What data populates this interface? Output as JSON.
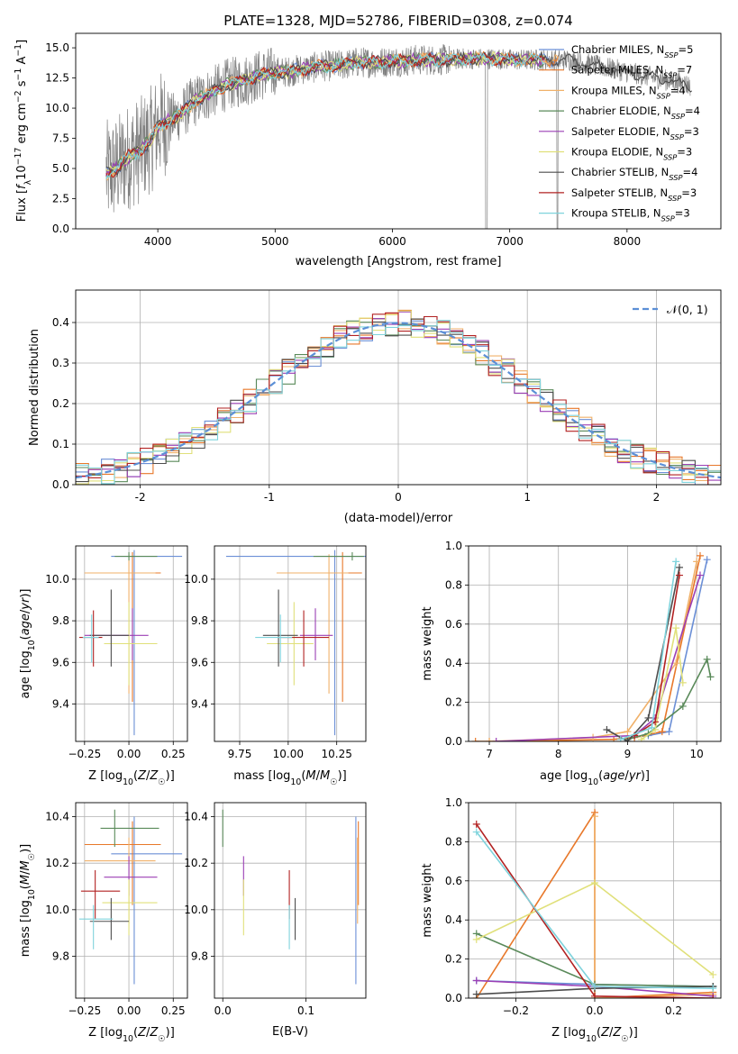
{
  "figure": {
    "title": "PLATE=1328, MJD=52786, FIBERID=0308, z=0.074"
  },
  "series_colors": [
    "#6b8fd6",
    "#e8782a",
    "#f0b16a",
    "#5a8a5a",
    "#9b3fb5",
    "#e0e07a",
    "#4d4d4d",
    "#b22222",
    "#7fd3dc"
  ],
  "chart_data": [
    {
      "id": "spectrum",
      "type": "line",
      "xlabel": "wavelength [Angstrom, rest frame]",
      "ylabel": "Flux [f_λ 10^-17 erg cm^-2 s^-1 A^-1]",
      "xlim": [
        3300,
        8800
      ],
      "ylim": [
        0,
        16.2
      ],
      "xticks": [
        4000,
        5000,
        6000,
        7000,
        8000
      ],
      "yticks": [
        0.0,
        2.5,
        5.0,
        7.5,
        10.0,
        12.5,
        15.0
      ],
      "legend_position": "right",
      "legend": [
        {
          "lib": "Chabrier MILES",
          "n": "5"
        },
        {
          "lib": "Salpeter MILES",
          "n": "7"
        },
        {
          "lib": "Kroupa MILES",
          "n": "4"
        },
        {
          "lib": "Chabrier ELODIE",
          "n": "4"
        },
        {
          "lib": "Salpeter ELODIE",
          "n": "3"
        },
        {
          "lib": "Kroupa ELODIE",
          "n": "3"
        },
        {
          "lib": "Chabrier STELIB",
          "n": "4"
        },
        {
          "lib": "Salpeter STELIB",
          "n": "3"
        },
        {
          "lib": "Kroupa STELIB",
          "n": "3"
        }
      ],
      "legend_subscript": "SSP",
      "continuum_x": [
        3550,
        3650,
        3750,
        3850,
        3950,
        4000,
        4100,
        4200,
        4300,
        4400,
        4500,
        4600,
        4700,
        4800,
        4900,
        5000,
        5100,
        5200,
        5300,
        5400,
        5500,
        5600,
        5700,
        5800,
        5900,
        6000,
        6100,
        6200,
        6300,
        6400,
        6500,
        6600,
        6700,
        6800,
        6900,
        7000,
        7100,
        7200,
        7300,
        7400,
        7500,
        7600,
        7700,
        7800,
        7900,
        8000,
        8100,
        8200,
        8300,
        8400,
        8500,
        8550
      ],
      "continuum_y": [
        4.5,
        5.0,
        6.0,
        6.5,
        7.5,
        8.5,
        9.0,
        9.5,
        10.5,
        11.0,
        11.5,
        12.0,
        12.2,
        12.5,
        12.8,
        13.0,
        13.0,
        13.2,
        13.3,
        13.5,
        13.5,
        13.6,
        13.8,
        13.8,
        13.8,
        13.9,
        13.9,
        14.0,
        14.0,
        14.0,
        14.0,
        14.1,
        14.1,
        14.1,
        14.1,
        14.0,
        14.0,
        14.0,
        14.0,
        14.0,
        14.0,
        13.8,
        13.6,
        13.4,
        13.2,
        13.0,
        12.8,
        12.6,
        12.4,
        12.2,
        12.0,
        11.8
      ]
    },
    {
      "id": "residuals",
      "type": "step",
      "xlabel": "(data-model)/error",
      "ylabel": "Normed distribution",
      "xlim": [
        -2.5,
        2.5
      ],
      "ylim": [
        0,
        0.48
      ],
      "xticks": [
        -2,
        -1,
        0,
        1,
        2
      ],
      "yticks": [
        0.0,
        0.1,
        0.2,
        0.3,
        0.4
      ],
      "grid": true,
      "legend_label": "𝒩(0, 1)",
      "legend_position": "top-right",
      "bin_start": -2.5,
      "bin_width": 0.1,
      "gaussian": {
        "mu": 0,
        "sigma": 1
      }
    },
    {
      "id": "age_vs_Z",
      "type": "errorbar",
      "xlabel": "Z [log10(Z/Z☉)]",
      "ylabel": "age  [log10(age/yr)]",
      "xlim": [
        -0.3,
        0.33
      ],
      "ylim": [
        9.22,
        10.16
      ],
      "xticks": [
        -0.25,
        0.0,
        0.25
      ],
      "xtick_labels": [
        "−0.25",
        "0.00",
        "0.25"
      ],
      "yticks": [
        9.4,
        9.6,
        9.8,
        10.0
      ],
      "grid": true,
      "points": [
        {
          "x": 0.03,
          "y": 10.11,
          "xerr": [
            0.13,
            0.27
          ],
          "yerr": [
            0.86,
            0.03
          ]
        },
        {
          "x": 0.02,
          "y": 10.03,
          "xerr": [
            0.27,
            0.16
          ],
          "yerr": [
            0.62,
            0.1
          ]
        },
        {
          "x": 0.0,
          "y": 10.03,
          "xerr": [
            0.25,
            0.15
          ],
          "yerr": [
            0.58,
            0.09
          ]
        },
        {
          "x": 0.0,
          "y": 10.11,
          "xerr": [
            0.08,
            0.16
          ],
          "yerr": [
            0.02,
            0.02
          ]
        },
        {
          "x": 0.02,
          "y": 9.73,
          "xerr": [
            0.27,
            0.09
          ],
          "yerr": [
            0.12,
            0.13
          ]
        },
        {
          "x": 0.0,
          "y": 9.69,
          "xerr": [
            0.14,
            0.16
          ],
          "yerr": [
            0.2,
            0.2
          ]
        },
        {
          "x": -0.1,
          "y": 9.73,
          "xerr": [
            0.12,
            0.1
          ],
          "yerr": [
            0.15,
            0.22
          ]
        },
        {
          "x": -0.2,
          "y": 9.72,
          "xerr": [
            0.08,
            0.05
          ],
          "yerr": [
            0.14,
            0.13
          ]
        },
        {
          "x": -0.21,
          "y": 9.72,
          "xerr": [
            0.05,
            0.04
          ],
          "yerr": [
            0.12,
            0.11
          ]
        }
      ]
    },
    {
      "id": "age_vs_mass",
      "type": "errorbar",
      "xlabel": "mass [log10(M/M☉)]",
      "ylabel": "",
      "xlim": [
        9.62,
        10.4
      ],
      "ylim": [
        9.22,
        10.16
      ],
      "xticks": [
        9.75,
        10.0,
        10.25
      ],
      "xtick_labels": [
        "9.75",
        "10.00",
        "10.25"
      ],
      "yticks": [
        9.4,
        9.6,
        9.8,
        10.0
      ],
      "grid": true,
      "points": [
        {
          "x": 10.24,
          "y": 10.11,
          "xerr": [
            0.56,
            0.16
          ],
          "yerr": [
            0.86,
            0.03
          ]
        },
        {
          "x": 10.28,
          "y": 10.03,
          "xerr": [
            0.26,
            0.1
          ],
          "yerr": [
            0.62,
            0.1
          ]
        },
        {
          "x": 10.21,
          "y": 10.03,
          "xerr": [
            0.27,
            0.1
          ],
          "yerr": [
            0.58,
            0.09
          ]
        },
        {
          "x": 10.33,
          "y": 10.11,
          "xerr": [
            0.2,
            0.06
          ],
          "yerr": [
            0.02,
            0.02
          ]
        },
        {
          "x": 10.14,
          "y": 9.73,
          "xerr": [
            0.08,
            0.09
          ],
          "yerr": [
            0.12,
            0.13
          ]
        },
        {
          "x": 10.03,
          "y": 9.69,
          "xerr": [
            0.14,
            0.1
          ],
          "yerr": [
            0.2,
            0.2
          ]
        },
        {
          "x": 9.95,
          "y": 9.73,
          "xerr": [
            0.08,
            0.1
          ],
          "yerr": [
            0.15,
            0.22
          ]
        },
        {
          "x": 10.08,
          "y": 9.72,
          "xerr": [
            0.12,
            0.13
          ],
          "yerr": [
            0.14,
            0.13
          ]
        },
        {
          "x": 9.96,
          "y": 9.72,
          "xerr": [
            0.13,
            0.06
          ],
          "yerr": [
            0.12,
            0.11
          ]
        }
      ]
    },
    {
      "id": "mass_weight_vs_age",
      "type": "line",
      "xlabel": "age  [log10(age/yr)]",
      "ylabel": "mass weight",
      "xlim": [
        6.7,
        10.35
      ],
      "ylim": [
        0,
        1.0
      ],
      "xticks": [
        7,
        8,
        9,
        10
      ],
      "yticks": [
        0.0,
        0.2,
        0.4,
        0.6,
        0.8,
        1.0
      ],
      "grid": true,
      "series": [
        {
          "x": [
            8.8,
            9.3,
            9.6,
            10.15
          ],
          "y": [
            0.01,
            0.03,
            0.05,
            0.93
          ]
        },
        {
          "x": [
            6.8,
            7.0,
            8.8,
            9.1,
            9.5,
            10.05
          ],
          "y": [
            0.0,
            0.0,
            0.01,
            0.02,
            0.05,
            0.95
          ]
        },
        {
          "x": [
            7.0,
            8.5,
            9.0,
            9.7,
            10.0
          ],
          "y": [
            0.0,
            0.02,
            0.05,
            0.4,
            0.92
          ]
        },
        {
          "x": [
            9.0,
            9.3,
            9.8,
            10.15,
            10.2
          ],
          "y": [
            0.01,
            0.04,
            0.18,
            0.42,
            0.33
          ]
        },
        {
          "x": [
            7.1,
            9.1,
            9.4,
            10.05
          ],
          "y": [
            0.0,
            0.03,
            0.12,
            0.85
          ]
        },
        {
          "x": [
            9.2,
            9.4,
            9.7,
            9.8
          ],
          "y": [
            0.01,
            0.06,
            0.58,
            0.3
          ]
        },
        {
          "x": [
            8.7,
            9.0,
            9.3,
            9.75
          ],
          "y": [
            0.06,
            0.0,
            0.12,
            0.89
          ]
        },
        {
          "x": [
            9.1,
            9.4,
            9.75
          ],
          "y": [
            0.03,
            0.1,
            0.85
          ]
        },
        {
          "x": [
            8.9,
            9.35,
            9.7
          ],
          "y": [
            0.01,
            0.07,
            0.92
          ]
        }
      ]
    },
    {
      "id": "mass_vs_Z",
      "type": "errorbar",
      "xlabel": "Z [log10(Z/Z☉)]",
      "ylabel": "mass [log10(M/M☉)]",
      "xlim": [
        -0.3,
        0.33
      ],
      "ylim": [
        9.62,
        10.46
      ],
      "xticks": [
        -0.25,
        0.0,
        0.25
      ],
      "xtick_labels": [
        "−0.25",
        "0.00",
        "0.25"
      ],
      "yticks": [
        9.8,
        10.0,
        10.2,
        10.4
      ],
      "grid": true,
      "points": [
        {
          "x": 0.03,
          "y": 10.24,
          "xerr": [
            0.13,
            0.27
          ],
          "yerr": [
            0.56,
            0.16
          ]
        },
        {
          "x": 0.02,
          "y": 10.28,
          "xerr": [
            0.27,
            0.16
          ],
          "yerr": [
            0.26,
            0.1
          ]
        },
        {
          "x": 0.0,
          "y": 10.21,
          "xerr": [
            0.25,
            0.15
          ],
          "yerr": [
            0.27,
            0.1
          ]
        },
        {
          "x": -0.08,
          "y": 10.35,
          "xerr": [
            0.08,
            0.25
          ],
          "yerr": [
            0.08,
            0.08
          ]
        },
        {
          "x": 0.0,
          "y": 10.14,
          "xerr": [
            0.14,
            0.16
          ],
          "yerr": [
            0.08,
            0.09
          ]
        },
        {
          "x": 0.0,
          "y": 10.03,
          "xerr": [
            0.15,
            0.16
          ],
          "yerr": [
            0.14,
            0.1
          ]
        },
        {
          "x": -0.1,
          "y": 9.95,
          "xerr": [
            0.12,
            0.1
          ],
          "yerr": [
            0.08,
            0.1
          ]
        },
        {
          "x": -0.19,
          "y": 10.08,
          "xerr": [
            0.08,
            0.14
          ],
          "yerr": [
            0.12,
            0.09
          ]
        },
        {
          "x": -0.2,
          "y": 9.96,
          "xerr": [
            0.08,
            0.11
          ],
          "yerr": [
            0.13,
            0.06
          ]
        }
      ]
    },
    {
      "id": "mass_vs_ebv",
      "type": "errorbar",
      "xlabel": "E(B-V)",
      "ylabel": "",
      "xlim": [
        -0.01,
        0.172
      ],
      "ylim": [
        9.62,
        10.46
      ],
      "xticks": [
        0.0,
        0.1
      ],
      "xtick_labels": [
        "0.0",
        "0.1"
      ],
      "yticks": [
        9.8,
        10.0,
        10.2,
        10.4
      ],
      "grid": true,
      "points": [
        {
          "x": 0.16,
          "y": 10.24,
          "yerr": [
            0.56,
            0.16
          ]
        },
        {
          "x": 0.163,
          "y": 10.28,
          "yerr": [
            0.26,
            0.1
          ]
        },
        {
          "x": 0.162,
          "y": 10.21,
          "yerr": [
            0.27,
            0.1
          ]
        },
        {
          "x": 0.0,
          "y": 10.35,
          "yerr": [
            0.08,
            0.08
          ]
        },
        {
          "x": 0.025,
          "y": 10.14,
          "yerr": [
            0.08,
            0.09
          ]
        },
        {
          "x": 0.025,
          "y": 10.03,
          "yerr": [
            0.14,
            0.1
          ]
        },
        {
          "x": 0.087,
          "y": 9.95,
          "yerr": [
            0.08,
            0.1
          ]
        },
        {
          "x": 0.08,
          "y": 10.08,
          "yerr": [
            0.12,
            0.09
          ]
        },
        {
          "x": 0.08,
          "y": 9.96,
          "yerr": [
            0.13,
            0.06
          ]
        }
      ]
    },
    {
      "id": "mass_weight_vs_Z",
      "type": "line",
      "xlabel": "Z [log10(Z/Z☉)]",
      "ylabel": "mass weight",
      "xlim": [
        -0.32,
        0.32
      ],
      "ylim": [
        0,
        1.0
      ],
      "xticks": [
        -0.2,
        0.0,
        0.2
      ],
      "xtick_labels": [
        "−0.2",
        "0.0",
        "0.2"
      ],
      "yticks": [
        0.0,
        0.2,
        0.4,
        0.6,
        0.8,
        1.0
      ],
      "grid": true,
      "series": [
        {
          "x": [
            -0.3,
            0.0,
            0.3
          ],
          "y": [
            0.09,
            0.07,
            0.06
          ]
        },
        {
          "x": [
            -0.3,
            0.0,
            0.0,
            0.3
          ],
          "y": [
            0.0,
            0.95,
            0.0,
            0.03
          ]
        },
        {
          "x": [
            0.0,
            0.0,
            0.3
          ],
          "y": [
            0.93,
            0.0,
            0.02
          ]
        },
        {
          "x": [
            -0.3,
            0.0,
            0.3
          ],
          "y": [
            0.33,
            0.07,
            0.06
          ]
        },
        {
          "x": [
            -0.3,
            0.0,
            0.3
          ],
          "y": [
            0.09,
            0.06,
            0.01
          ]
        },
        {
          "x": [
            -0.3,
            0.0,
            0.3
          ],
          "y": [
            0.3,
            0.59,
            0.12
          ]
        },
        {
          "x": [
            -0.3,
            0.0,
            0.3
          ],
          "y": [
            0.02,
            0.05,
            0.06
          ]
        },
        {
          "x": [
            -0.3,
            0.0,
            0.3
          ],
          "y": [
            0.89,
            0.01,
            0.0
          ]
        },
        {
          "x": [
            -0.3,
            0.0,
            0.3
          ],
          "y": [
            0.85,
            0.06,
            0.05
          ]
        }
      ]
    }
  ]
}
